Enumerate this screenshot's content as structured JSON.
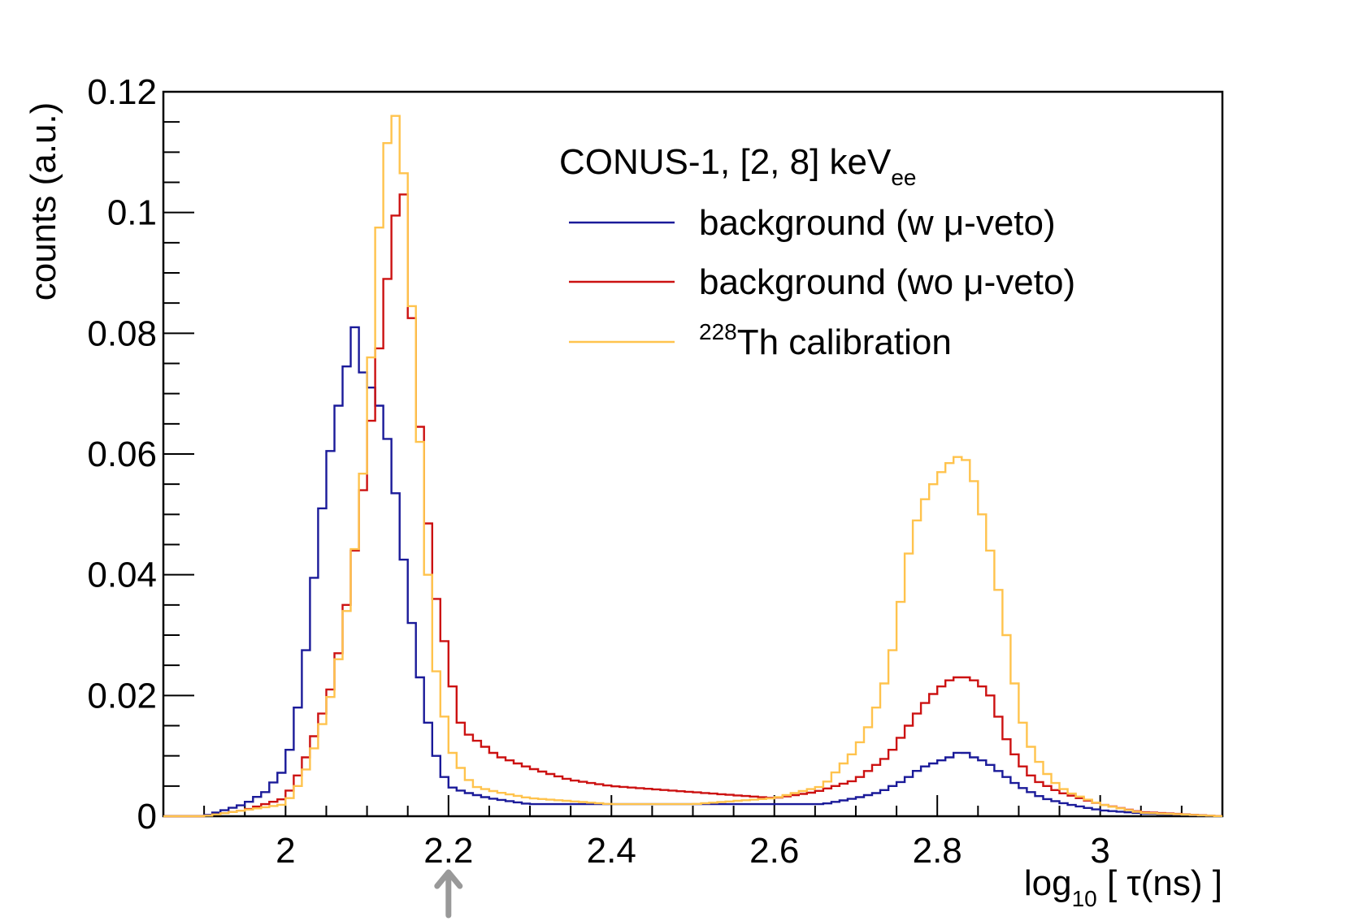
{
  "chart_data": {
    "type": "histogram-step",
    "title": "",
    "xlabel": {
      "main": "log",
      "sub": "10",
      "rest": " [ τ(ns) ]"
    },
    "ylabel": "counts (a.u.)",
    "xlim": [
      1.85,
      3.15
    ],
    "ylim": [
      0,
      0.12
    ],
    "x_ticks": [
      2,
      2.2,
      2.4,
      2.6,
      2.8,
      3
    ],
    "x_tick_labels": [
      "2",
      "2.2",
      "2.4",
      "2.6",
      "2.8",
      "3"
    ],
    "y_ticks": [
      0,
      0.02,
      0.04,
      0.06,
      0.08,
      0.1,
      0.12
    ],
    "y_tick_labels": [
      "0",
      "0.02",
      "0.04",
      "0.06",
      "0.08",
      "0.1",
      "0.12"
    ],
    "annotation_arrow_x": 2.2,
    "legend": {
      "header": {
        "main": "CONUS-1, [2, 8] keV",
        "sub": "ee"
      },
      "placement": "top-right"
    },
    "series": [
      {
        "name": "background (w μ-veto)",
        "label_parts": {
          "sup": "",
          "text": "background (w μ-veto)"
        },
        "color": "#1a1a99",
        "points": [
          [
            1.85,
            0
          ],
          [
            1.9,
            0
          ],
          [
            1.95,
            0.002
          ],
          [
            1.975,
            0.004
          ],
          [
            2.0,
            0.008
          ],
          [
            2.01,
            0.014
          ],
          [
            2.02,
            0.022
          ],
          [
            2.03,
            0.033
          ],
          [
            2.04,
            0.046
          ],
          [
            2.05,
            0.056
          ],
          [
            2.06,
            0.065
          ],
          [
            2.07,
            0.071
          ],
          [
            2.08,
            0.078
          ],
          [
            2.085,
            0.081
          ],
          [
            2.09,
            0.075
          ],
          [
            2.1,
            0.072
          ],
          [
            2.11,
            0.07
          ],
          [
            2.12,
            0.066
          ],
          [
            2.13,
            0.059
          ],
          [
            2.14,
            0.048
          ],
          [
            2.15,
            0.037
          ],
          [
            2.16,
            0.027
          ],
          [
            2.17,
            0.019
          ],
          [
            2.18,
            0.012
          ],
          [
            2.19,
            0.008
          ],
          [
            2.2,
            0.005
          ],
          [
            2.22,
            0.004
          ],
          [
            2.25,
            0.003
          ],
          [
            2.3,
            0.002
          ],
          [
            2.4,
            0.002
          ],
          [
            2.5,
            0.002
          ],
          [
            2.6,
            0.002
          ],
          [
            2.66,
            0.002
          ],
          [
            2.7,
            0.003
          ],
          [
            2.73,
            0.004
          ],
          [
            2.76,
            0.006
          ],
          [
            2.78,
            0.008
          ],
          [
            2.8,
            0.009
          ],
          [
            2.82,
            0.01
          ],
          [
            2.83,
            0.011
          ],
          [
            2.84,
            0.01
          ],
          [
            2.86,
            0.009
          ],
          [
            2.88,
            0.007
          ],
          [
            2.9,
            0.005
          ],
          [
            2.93,
            0.003
          ],
          [
            2.96,
            0.002
          ],
          [
            3.0,
            0.001
          ],
          [
            3.05,
            0.0005
          ],
          [
            3.15,
            0
          ]
        ]
      },
      {
        "name": "background (wo μ-veto)",
        "label_parts": {
          "sup": "",
          "text": "background (wo μ-veto)"
        },
        "color": "#cc1111",
        "points": [
          [
            1.85,
            0
          ],
          [
            1.9,
            0
          ],
          [
            1.95,
            0.001
          ],
          [
            2.0,
            0.003
          ],
          [
            2.02,
            0.008
          ],
          [
            2.04,
            0.015
          ],
          [
            2.06,
            0.023
          ],
          [
            2.08,
            0.039
          ],
          [
            2.1,
            0.059
          ],
          [
            2.11,
            0.072
          ],
          [
            2.12,
            0.083
          ],
          [
            2.13,
            0.095
          ],
          [
            2.14,
            0.104
          ],
          [
            2.145,
            0.103
          ],
          [
            2.15,
            0.093
          ],
          [
            2.16,
            0.072
          ],
          [
            2.17,
            0.057
          ],
          [
            2.18,
            0.04
          ],
          [
            2.19,
            0.032
          ],
          [
            2.2,
            0.026
          ],
          [
            2.21,
            0.017
          ],
          [
            2.22,
            0.014
          ],
          [
            2.24,
            0.012
          ],
          [
            2.26,
            0.01
          ],
          [
            2.3,
            0.008
          ],
          [
            2.35,
            0.006
          ],
          [
            2.4,
            0.005
          ],
          [
            2.5,
            0.004
          ],
          [
            2.6,
            0.003
          ],
          [
            2.65,
            0.004
          ],
          [
            2.7,
            0.006
          ],
          [
            2.72,
            0.008
          ],
          [
            2.74,
            0.01
          ],
          [
            2.76,
            0.014
          ],
          [
            2.78,
            0.018
          ],
          [
            2.8,
            0.021
          ],
          [
            2.82,
            0.023
          ],
          [
            2.84,
            0.023
          ],
          [
            2.86,
            0.021
          ],
          [
            2.87,
            0.019
          ],
          [
            2.88,
            0.014
          ],
          [
            2.9,
            0.009
          ],
          [
            2.92,
            0.006
          ],
          [
            2.95,
            0.004
          ],
          [
            3.0,
            0.002
          ],
          [
            3.05,
            0.0007
          ],
          [
            3.15,
            0
          ]
        ]
      },
      {
        "name": "228Th calibration",
        "label_parts": {
          "sup": "228",
          "text": "Th calibration"
        },
        "color": "#ffc34d",
        "points": [
          [
            1.85,
            0
          ],
          [
            1.9,
            0
          ],
          [
            1.95,
            0.001
          ],
          [
            2.0,
            0.002
          ],
          [
            2.02,
            0.006
          ],
          [
            2.04,
            0.013
          ],
          [
            2.06,
            0.022
          ],
          [
            2.08,
            0.038
          ],
          [
            2.1,
            0.063
          ],
          [
            2.11,
            0.089
          ],
          [
            2.12,
            0.106
          ],
          [
            2.13,
            0.117
          ],
          [
            2.14,
            0.115
          ],
          [
            2.15,
            0.098
          ],
          [
            2.16,
            0.071
          ],
          [
            2.17,
            0.053
          ],
          [
            2.18,
            0.027
          ],
          [
            2.19,
            0.021
          ],
          [
            2.2,
            0.012
          ],
          [
            2.21,
            0.009
          ],
          [
            2.23,
            0.005
          ],
          [
            2.26,
            0.004
          ],
          [
            2.3,
            0.003
          ],
          [
            2.4,
            0.002
          ],
          [
            2.5,
            0.002
          ],
          [
            2.6,
            0.003
          ],
          [
            2.66,
            0.005
          ],
          [
            2.7,
            0.011
          ],
          [
            2.72,
            0.016
          ],
          [
            2.74,
            0.024
          ],
          [
            2.75,
            0.031
          ],
          [
            2.76,
            0.04
          ],
          [
            2.77,
            0.047
          ],
          [
            2.78,
            0.051
          ],
          [
            2.79,
            0.054
          ],
          [
            2.8,
            0.056
          ],
          [
            2.81,
            0.058
          ],
          [
            2.82,
            0.059
          ],
          [
            2.83,
            0.06
          ],
          [
            2.84,
            0.058
          ],
          [
            2.85,
            0.053
          ],
          [
            2.86,
            0.047
          ],
          [
            2.87,
            0.041
          ],
          [
            2.88,
            0.034
          ],
          [
            2.89,
            0.026
          ],
          [
            2.9,
            0.018
          ],
          [
            2.91,
            0.013
          ],
          [
            2.92,
            0.01
          ],
          [
            2.94,
            0.006
          ],
          [
            2.96,
            0.004
          ],
          [
            3.0,
            0.002
          ],
          [
            3.05,
            0.0006
          ],
          [
            3.15,
            0
          ]
        ]
      }
    ]
  }
}
